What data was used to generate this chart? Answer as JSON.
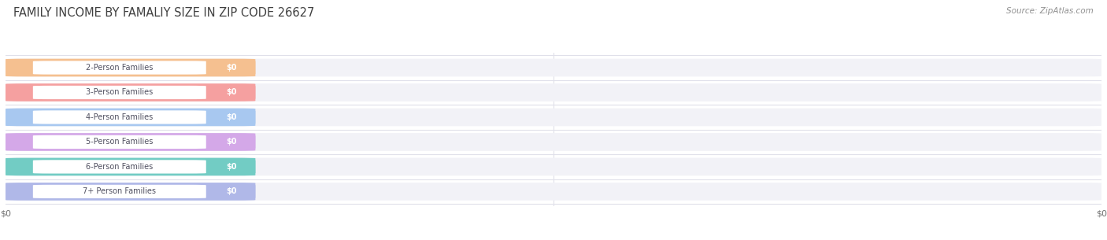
{
  "title": "FAMILY INCOME BY FAMALIY SIZE IN ZIP CODE 26627",
  "source": "Source: ZipAtlas.com",
  "categories": [
    "2-Person Families",
    "3-Person Families",
    "4-Person Families",
    "5-Person Families",
    "6-Person Families",
    "7+ Person Families"
  ],
  "values": [
    0,
    0,
    0,
    0,
    0,
    0
  ],
  "bar_colors": [
    "#f5c090",
    "#f5a0a0",
    "#a8c8f0",
    "#d4a8e8",
    "#72ccc4",
    "#b0b8e8"
  ],
  "bar_colors_dark": [
    "#e8a050",
    "#e07070",
    "#70a0d8",
    "#b070c8",
    "#38a8a0",
    "#8088c8"
  ],
  "background_color": "#ffffff",
  "bar_bg_color": "#f2f2f7",
  "grid_color": "#e0e0ea",
  "title_color": "#404040",
  "label_text_color": "#505060",
  "value_text_color": "#ffffff",
  "source_color": "#909090",
  "figsize": [
    14.06,
    3.05
  ],
  "dpi": 100
}
